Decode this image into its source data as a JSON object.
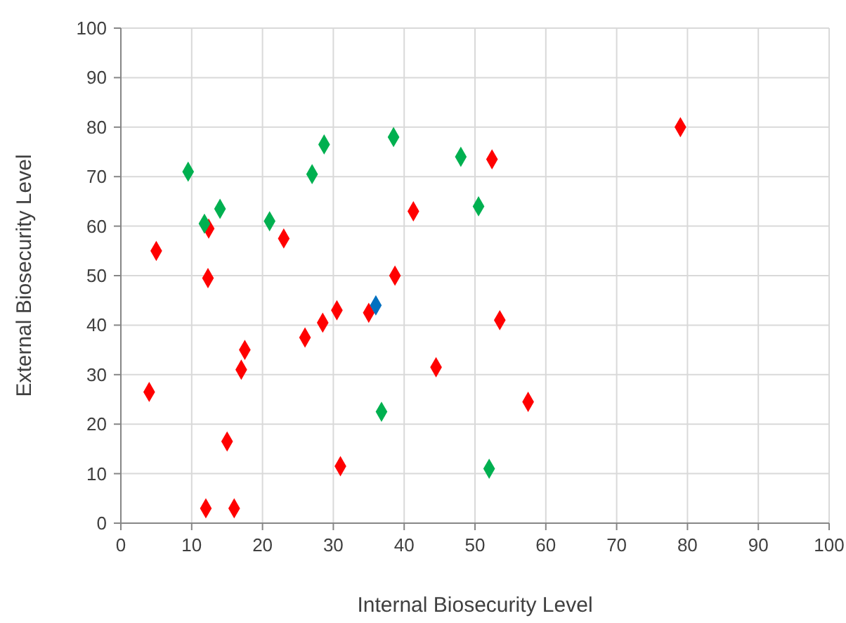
{
  "chart_data": {
    "type": "scatter",
    "xlabel": "Internal Biosecurity Level",
    "ylabel": "External Biosecurity Level",
    "xlim": [
      0,
      100
    ],
    "ylim": [
      0,
      100
    ],
    "xticks": [
      0,
      10,
      20,
      30,
      40,
      50,
      60,
      70,
      80,
      90,
      100
    ],
    "yticks": [
      0,
      10,
      20,
      30,
      40,
      50,
      60,
      70,
      80,
      90,
      100
    ],
    "grid": true,
    "marker": "diamond",
    "series": [
      {
        "color": "#ff0000",
        "x": [
          4,
          5,
          12.3,
          12.4,
          12,
          16,
          15,
          17,
          17.5,
          23,
          26,
          28.5,
          30.5,
          31,
          35,
          38.7,
          41.3,
          44.5,
          52.4,
          53.5,
          57.5,
          79
        ],
        "values": [
          26.5,
          55,
          49.5,
          59.5,
          3,
          3,
          16.5,
          31,
          35,
          57.5,
          37.5,
          40.5,
          43,
          11.5,
          42.5,
          50,
          63,
          31.5,
          73.5,
          41,
          24.5,
          80
        ]
      },
      {
        "color": "#00b050",
        "x": [
          9.5,
          11.8,
          14,
          21,
          27,
          28.7,
          38.5,
          48,
          50.5,
          36.8,
          52
        ],
        "values": [
          71,
          60.5,
          63.5,
          61,
          70.5,
          76.5,
          78,
          74,
          64,
          22.5,
          11
        ]
      },
      {
        "color": "#0070c0",
        "x": [
          36
        ],
        "values": [
          44
        ]
      }
    ]
  }
}
